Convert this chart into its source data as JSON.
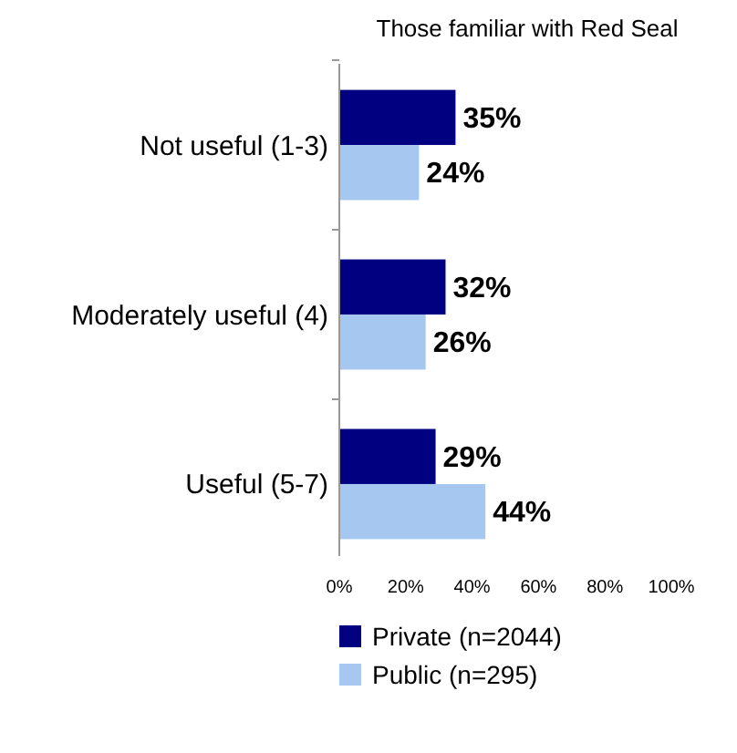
{
  "chart_data": {
    "type": "bar",
    "orientation": "horizontal",
    "title": "Those familiar with Red Seal",
    "categories": [
      "Not useful (1-3)",
      "Moderately useful (4)",
      "Useful (5-7)"
    ],
    "series": [
      {
        "name": "Private (n=2044)",
        "color": "#000080",
        "values": [
          35,
          32,
          29
        ]
      },
      {
        "name": "Public (n=295)",
        "color": "#a6c8f0",
        "values": [
          24,
          26,
          44
        ]
      }
    ],
    "xlim": [
      0,
      100
    ],
    "xticks": [
      {
        "value": 0,
        "label": "0%"
      },
      {
        "value": 20,
        "label": "20%"
      },
      {
        "value": 40,
        "label": "40%"
      },
      {
        "value": 60,
        "label": "60%"
      },
      {
        "value": 80,
        "label": "80%"
      },
      {
        "value": 100,
        "label": "100%"
      }
    ],
    "value_labels": [
      [
        "35%",
        "32%",
        "29%"
      ],
      [
        "24%",
        "26%",
        "44%"
      ]
    ],
    "legend": "bottom",
    "grid": false
  }
}
